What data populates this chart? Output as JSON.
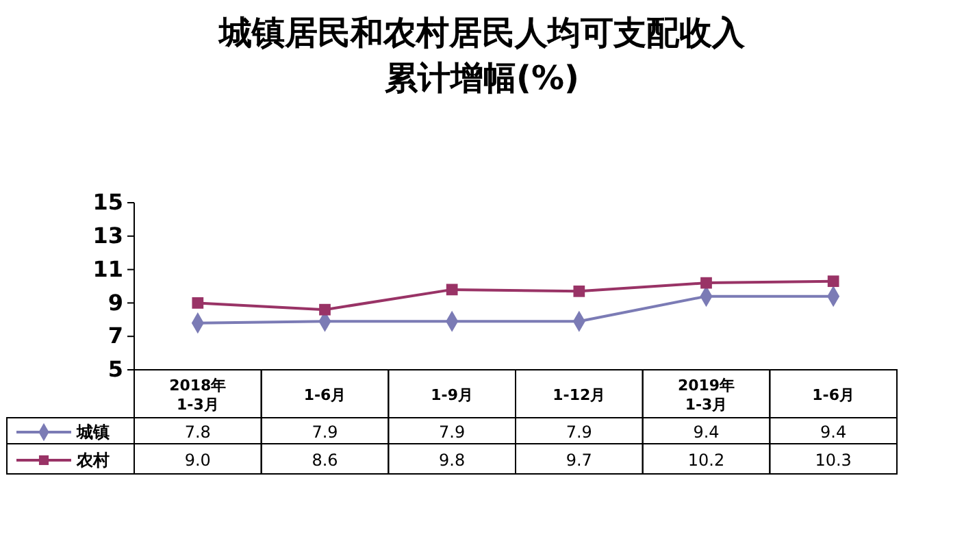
{
  "chart_data": {
    "type": "line",
    "title": "城镇居民和农村居民人均可支配收入",
    "subtitle": "累计增幅(%)",
    "categories": [
      "2018年\n1-3月",
      "1-6月",
      "1-9月",
      "1-12月",
      "2019年\n1-3月",
      "1-6月"
    ],
    "series": [
      {
        "name": "城镇",
        "color": "#7b7bb5",
        "marker": "diamond",
        "values": [
          7.8,
          7.9,
          7.9,
          7.9,
          9.4,
          9.4
        ],
        "value_labels": [
          "7.8",
          "7.9",
          "7.9",
          "7.9",
          "9.4",
          "9.4"
        ]
      },
      {
        "name": "农村",
        "color": "#993366",
        "marker": "square",
        "values": [
          9.0,
          8.6,
          9.8,
          9.7,
          10.2,
          10.3
        ],
        "value_labels": [
          "9.0",
          "8.6",
          "9.8",
          "9.7",
          "10.2",
          "10.3"
        ]
      }
    ],
    "ylim": [
      5,
      15
    ],
    "yticks": [
      5,
      7,
      9,
      11,
      13,
      15
    ],
    "legend": "bottom left"
  }
}
